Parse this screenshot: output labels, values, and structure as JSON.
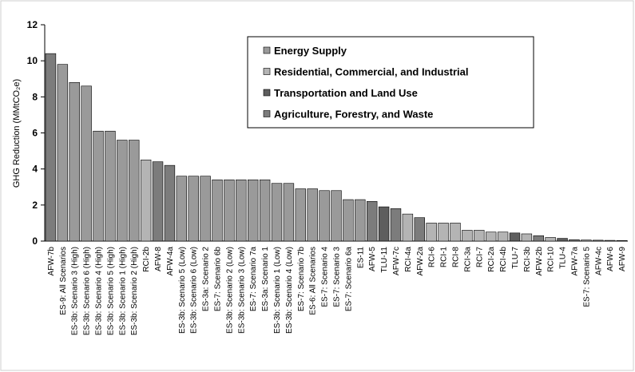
{
  "chart_data": {
    "type": "bar",
    "ylabel": "GHG Reduction (MMtCO₂e)",
    "ylim": [
      0,
      12
    ],
    "yticks": [
      0,
      2,
      4,
      6,
      8,
      10,
      12
    ],
    "grid": false,
    "legend_placement": "top-right",
    "colors": {
      "Energy Supply": "#9a9a9a",
      "Residential, Commercial, and Industrial": "#b4b4b4",
      "Transportation and Land Use": "#5e5e5e",
      "Agriculture, Forestry, and Waste": "#7c7c7c"
    },
    "legend": [
      "Energy Supply",
      "Residential, Commercial, and Industrial",
      "Transportation and Land Use",
      "Agriculture, Forestry, and Waste"
    ],
    "categories": [
      "AFW-7b",
      "ES-9: All Scenarios",
      "ES-3b: Scenario 3 (High)",
      "ES-3b: Scenario 6 (High)",
      "ES-3b: Scenario 4 (High)",
      "ES-3b: Scenario 5 (High)",
      "ES-3b: Scenario 1 (High)",
      "ES-3b: Scenario 2 (High)",
      "RCI-2b",
      "AFW-8",
      "AFW-4a",
      "ES-3b: Scenario 5 (Low)",
      "ES-3b: Scenario 6 (Low)",
      "ES-3a: Scenario 2",
      "ES-7: Scenario 6b",
      "ES-3b: Scenario 2 (Low)",
      "ES-3b: Scenario 3 (Low)",
      "ES-7: Scenario 7a",
      "ES-3a: Scenario 1",
      "ES-3b: Scenario 1 (Low)",
      "ES-3b: Scenario 4 (Low)",
      "ES-7: Scenario 7b",
      "ES-6: All Scenarios",
      "ES-7: Scenario 4",
      "ES-7: Scenario 3",
      "ES-7: Scenario 6a",
      "ES-11",
      "AFW-5",
      "TLU-11",
      "AFW-7c",
      "RCI-4a",
      "AFW-2a",
      "RCI-6",
      "RCI-1",
      "RCI-8",
      "RCI-3a",
      "RCI-7",
      "RCI-2a",
      "RCI-4b",
      "TLU-7",
      "RCI-3b",
      "AFW-2b",
      "RCI-10",
      "TLU-4",
      "AFW-7a",
      "ES-7: Scenario 5",
      "AFW-4c",
      "AFW-6",
      "AFW-9"
    ],
    "values": [
      10.4,
      9.8,
      8.8,
      8.6,
      6.1,
      6.1,
      5.6,
      5.6,
      4.5,
      4.4,
      4.2,
      3.6,
      3.6,
      3.6,
      3.4,
      3.4,
      3.4,
      3.4,
      3.4,
      3.2,
      3.2,
      2.9,
      2.9,
      2.8,
      2.8,
      2.3,
      2.3,
      2.2,
      1.9,
      1.8,
      1.5,
      1.3,
      1.0,
      1.0,
      1.0,
      0.6,
      0.6,
      0.5,
      0.5,
      0.45,
      0.4,
      0.3,
      0.2,
      0.15,
      0.08,
      0.06,
      0.05,
      0.04,
      0.03
    ],
    "sectors": [
      "Agriculture, Forestry, and Waste",
      "Energy Supply",
      "Energy Supply",
      "Energy Supply",
      "Energy Supply",
      "Energy Supply",
      "Energy Supply",
      "Energy Supply",
      "Residential, Commercial, and Industrial",
      "Agriculture, Forestry, and Waste",
      "Agriculture, Forestry, and Waste",
      "Energy Supply",
      "Energy Supply",
      "Energy Supply",
      "Energy Supply",
      "Energy Supply",
      "Energy Supply",
      "Energy Supply",
      "Energy Supply",
      "Energy Supply",
      "Energy Supply",
      "Energy Supply",
      "Energy Supply",
      "Energy Supply",
      "Energy Supply",
      "Energy Supply",
      "Energy Supply",
      "Agriculture, Forestry, and Waste",
      "Transportation and Land Use",
      "Agriculture, Forestry, and Waste",
      "Residential, Commercial, and Industrial",
      "Agriculture, Forestry, and Waste",
      "Residential, Commercial, and Industrial",
      "Residential, Commercial, and Industrial",
      "Residential, Commercial, and Industrial",
      "Residential, Commercial, and Industrial",
      "Residential, Commercial, and Industrial",
      "Residential, Commercial, and Industrial",
      "Residential, Commercial, and Industrial",
      "Transportation and Land Use",
      "Residential, Commercial, and Industrial",
      "Agriculture, Forestry, and Waste",
      "Residential, Commercial, and Industrial",
      "Transportation and Land Use",
      "Agriculture, Forestry, and Waste",
      "Energy Supply",
      "Agriculture, Forestry, and Waste",
      "Agriculture, Forestry, and Waste",
      "Agriculture, Forestry, and Waste"
    ]
  }
}
